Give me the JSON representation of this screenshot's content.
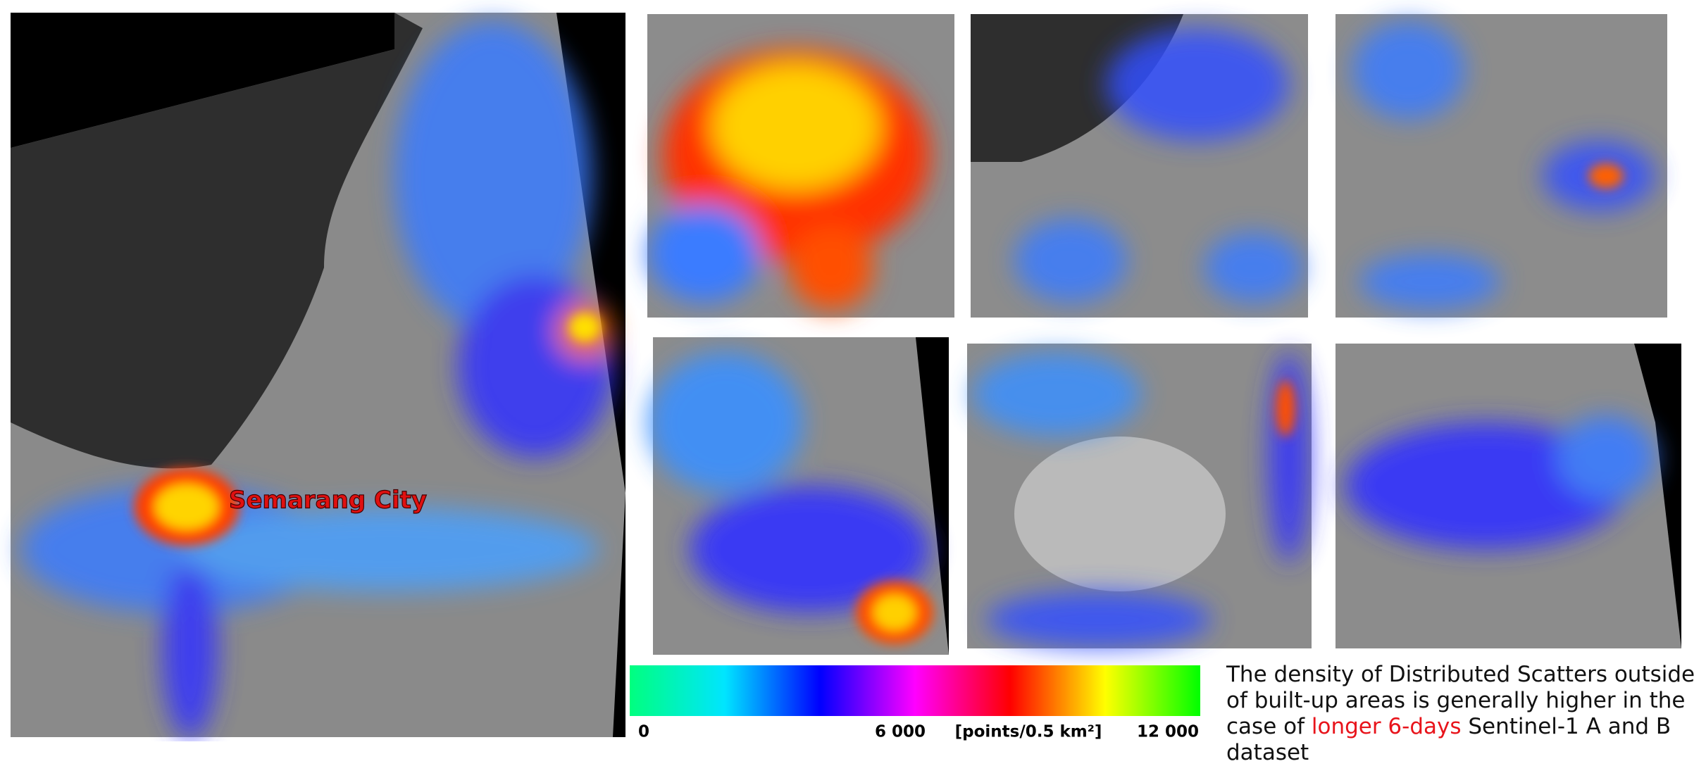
{
  "map_labels": {
    "city": "Semarang City"
  },
  "colorbar": {
    "range": [
      0,
      12000
    ],
    "colors": [
      "#00ff7f",
      "#00e5ff",
      "#0000ff",
      "#ff00ff",
      "#ff0000",
      "#ffff00",
      "#00ff00"
    ],
    "ticks": [
      {
        "value": 0,
        "label": "0"
      },
      {
        "value": 6000,
        "label": "6 000"
      },
      {
        "value": 12000,
        "label": "12 000"
      }
    ],
    "unit": "[points/0.5 km²]"
  },
  "caption": {
    "before": "The density of Distributed Scatters outside of built-up areas is generally higher in the case of",
    "highlight": "longer 6-days",
    "after": "Sentinel-1 A and B dataset"
  }
}
